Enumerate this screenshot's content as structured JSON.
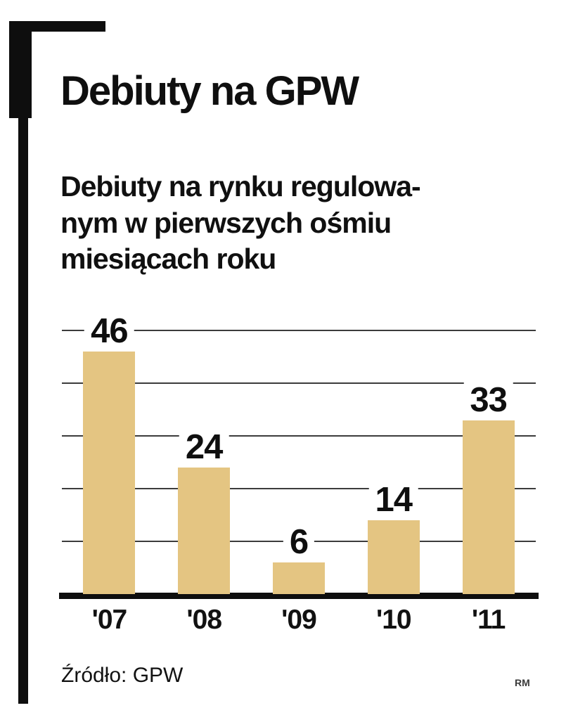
{
  "title": "Debiuty na GPW",
  "subtitle_lines": [
    "Debiuty na rynku regulowa-",
    "nym w pierwszych ośmiu",
    "miesiącach roku"
  ],
  "source": "Źródło: GPW",
  "credit": "RM",
  "colors": {
    "bar": "#e4c582",
    "axis": "#0e0e0e",
    "grid": "#3c3c3c"
  },
  "chart_data": {
    "type": "bar",
    "title": "Debiuty na GPW",
    "subtitle": "Debiuty na rynku regulowanym w pierwszych ośmiu miesiącach roku",
    "categories": [
      "'07",
      "'08",
      "'09",
      "'10",
      "'11"
    ],
    "values": [
      46,
      24,
      6,
      14,
      33
    ],
    "xlabel": "",
    "ylabel": "",
    "ylim": [
      0,
      50
    ],
    "gridlines": [
      10,
      20,
      30,
      40,
      50
    ],
    "grid": true,
    "legend": false,
    "source": "Źródło: GPW"
  }
}
